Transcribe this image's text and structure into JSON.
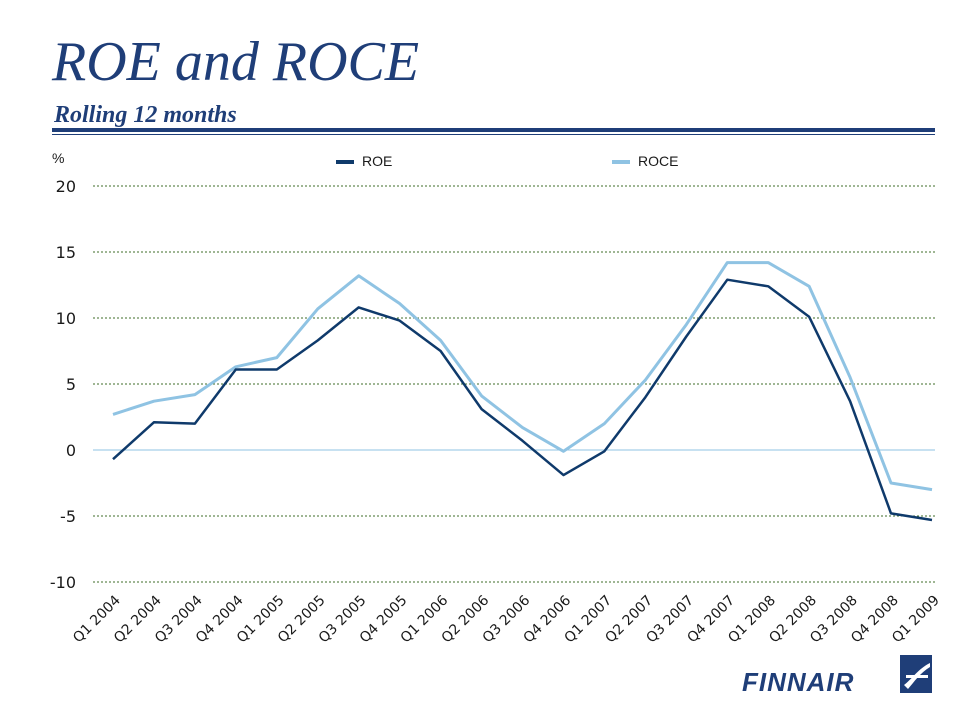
{
  "header": {
    "title": "ROE and ROCE",
    "subtitle": "Rolling 12 months"
  },
  "logo": {
    "name": "finnair-logo",
    "text": "FINNAIR"
  },
  "colors": {
    "brand": "#1f3e78",
    "roe": "#0f3a6b",
    "roce": "#8fc3e3",
    "grid": "#3f6e2a"
  },
  "chart_data": {
    "type": "line",
    "ylabel": "%",
    "ylim": [
      -10,
      20
    ],
    "yticks": [
      20,
      15,
      10,
      5,
      0,
      -5,
      -10
    ],
    "grid": true,
    "legend": "top-center",
    "categories": [
      "Q1 2004",
      "Q2 2004",
      "Q3 2004",
      "Q4 2004",
      "Q1 2005",
      "Q2 2005",
      "Q3 2005",
      "Q4 2005",
      "Q1 2006",
      "Q2 2006",
      "Q3 2006",
      "Q4 2006",
      "Q1 2007",
      "Q2 2007",
      "Q3 2007",
      "Q4 2007",
      "Q1 2008",
      "Q2 2008",
      "Q3 2008",
      "Q4 2008",
      "Q1 2009"
    ],
    "series": [
      {
        "name": "ROE",
        "color": "#0f3a6b",
        "values": [
          -0.7,
          2.1,
          2.0,
          6.1,
          6.1,
          8.3,
          10.8,
          9.8,
          7.5,
          3.1,
          0.7,
          -1.9,
          -0.1,
          4.0,
          8.6,
          12.9,
          12.4,
          10.1,
          3.7,
          -4.8,
          -5.3
        ]
      },
      {
        "name": "ROCE",
        "color": "#8fc3e3",
        "values": [
          2.7,
          3.7,
          4.2,
          6.3,
          7.0,
          10.7,
          13.2,
          11.1,
          8.3,
          4.1,
          1.7,
          -0.1,
          2.0,
          5.3,
          9.5,
          14.2,
          14.2,
          12.4,
          5.5,
          -2.5,
          -3.0
        ]
      }
    ]
  }
}
